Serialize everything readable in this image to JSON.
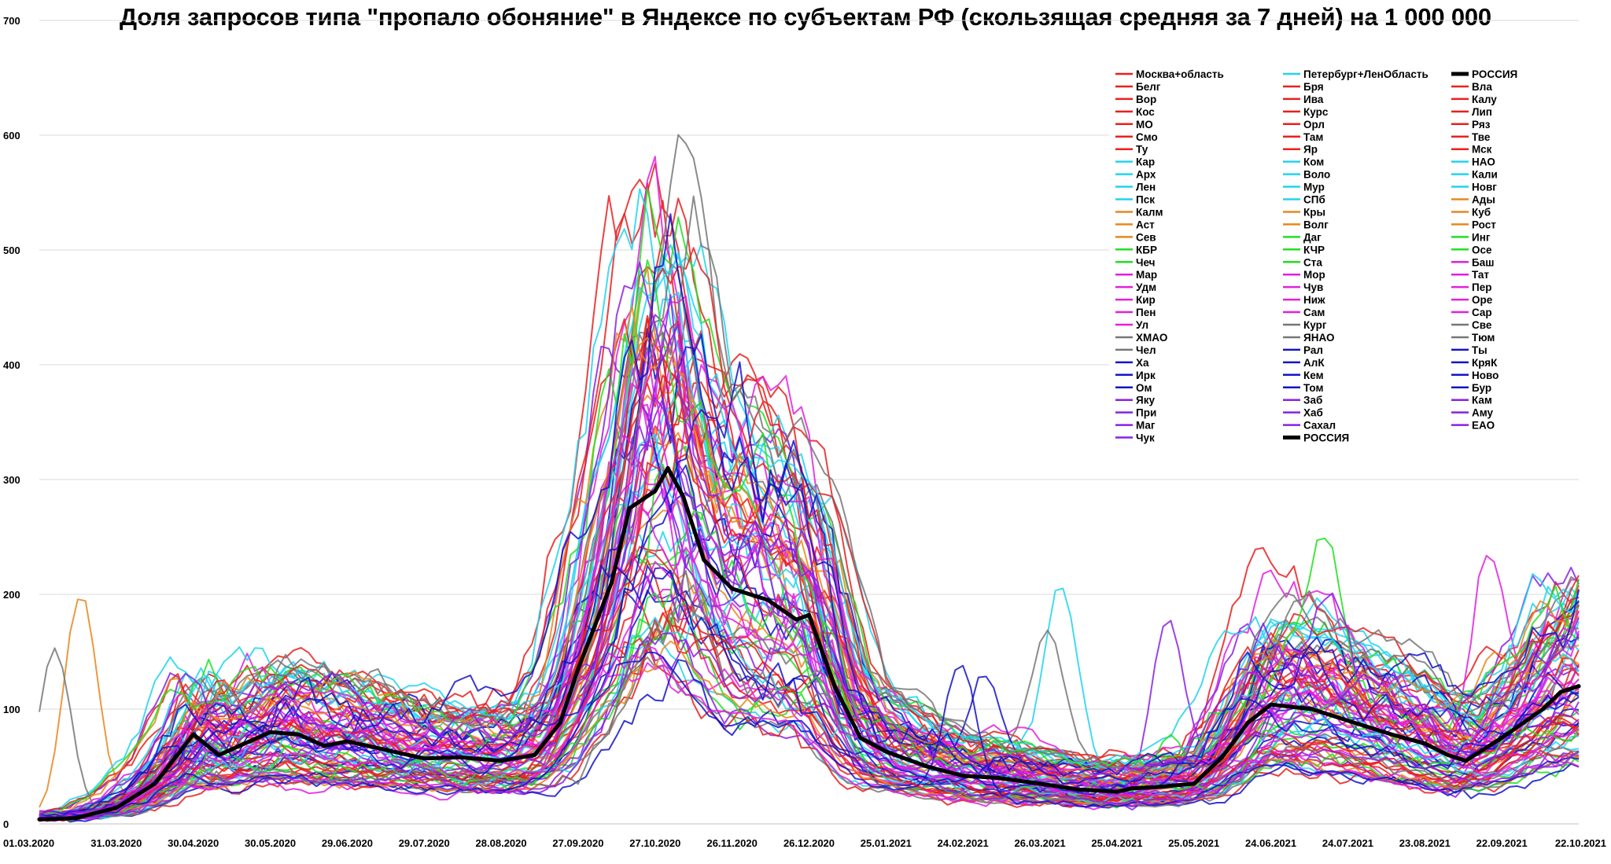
{
  "chart_data": {
    "type": "line",
    "title": "Доля запросов типа \"пропало обоняние\" в Яндексе по субъектам РФ (скользящая средняя за 7 дней) на 1 000 000",
    "xlabel": "",
    "ylabel": "",
    "x_range": [
      "01.03.2020",
      "22.10.2021"
    ],
    "ylim": [
      0,
      700
    ],
    "yticks": [
      0,
      100,
      200,
      300,
      400,
      500,
      600,
      700
    ],
    "xticks": [
      "01.03.2020",
      "31.03.2020",
      "30.04.2020",
      "30.05.2020",
      "29.06.2020",
      "29.07.2020",
      "28.08.2020",
      "27.09.2020",
      "27.10.2020",
      "26.11.2020",
      "26.12.2020",
      "25.01.2021",
      "24.02.2021",
      "26.03.2021",
      "25.04.2021",
      "25.05.2021",
      "24.06.2021",
      "24.07.2021",
      "23.08.2021",
      "22.09.2021",
      "22.10.2021"
    ],
    "grid": "horizontal",
    "legend_position": "top-right",
    "legend": [
      [
        {
          "name": "Москва+область",
          "color": "#e8201e"
        },
        {
          "name": "Белг",
          "color": "#e8201e"
        },
        {
          "name": "Вор",
          "color": "#e8201e"
        },
        {
          "name": "Кос",
          "color": "#e8201e"
        },
        {
          "name": "МО",
          "color": "#e8201e"
        },
        {
          "name": "Смо",
          "color": "#e8201e"
        },
        {
          "name": "Ту",
          "color": "#e8201e"
        },
        {
          "name": "Кар",
          "color": "#22d3f0"
        },
        {
          "name": "Арх",
          "color": "#22d3f0"
        },
        {
          "name": "Лен",
          "color": "#22d3f0"
        },
        {
          "name": "Пск",
          "color": "#22d3f0"
        },
        {
          "name": "Калм",
          "color": "#e8871e"
        },
        {
          "name": "Аст",
          "color": "#e8871e"
        },
        {
          "name": "Сев",
          "color": "#e8871e"
        },
        {
          "name": "КБР",
          "color": "#22e022"
        },
        {
          "name": "Чеч",
          "color": "#22e022"
        },
        {
          "name": "Мар",
          "color": "#e020e0"
        },
        {
          "name": "Удм",
          "color": "#e020e0"
        },
        {
          "name": "Кир",
          "color": "#e020e0"
        },
        {
          "name": "Пен",
          "color": "#e020e0"
        },
        {
          "name": "Ул",
          "color": "#e020e0"
        },
        {
          "name": "ХМАО",
          "color": "#777777"
        },
        {
          "name": "Чел",
          "color": "#777777"
        },
        {
          "name": "Ха",
          "color": "#1414c8"
        },
        {
          "name": "Ирк",
          "color": "#1414c8"
        },
        {
          "name": "Ом",
          "color": "#1414c8"
        },
        {
          "name": "Яку",
          "color": "#8a22e0"
        },
        {
          "name": "При",
          "color": "#8a22e0"
        },
        {
          "name": "Маг",
          "color": "#8a22e0"
        },
        {
          "name": "Чук",
          "color": "#8a22e0"
        }
      ],
      [
        {
          "name": "Петербург+ЛенОбласть",
          "color": "#22d3f0"
        },
        {
          "name": "Бря",
          "color": "#e8201e"
        },
        {
          "name": "Ива",
          "color": "#e8201e"
        },
        {
          "name": "Курс",
          "color": "#e8201e"
        },
        {
          "name": "Орл",
          "color": "#e8201e"
        },
        {
          "name": "Там",
          "color": "#e8201e"
        },
        {
          "name": "Яр",
          "color": "#e8201e"
        },
        {
          "name": "Ком",
          "color": "#22d3f0"
        },
        {
          "name": "Воло",
          "color": "#22d3f0"
        },
        {
          "name": "Мур",
          "color": "#22d3f0"
        },
        {
          "name": "СПб",
          "color": "#22d3f0"
        },
        {
          "name": "Кры",
          "color": "#e8871e"
        },
        {
          "name": "Волг",
          "color": "#e8871e"
        },
        {
          "name": "Даг",
          "color": "#22e022"
        },
        {
          "name": "КЧР",
          "color": "#22e022"
        },
        {
          "name": "Ста",
          "color": "#22e022"
        },
        {
          "name": "Мор",
          "color": "#e020e0"
        },
        {
          "name": "Чув",
          "color": "#e020e0"
        },
        {
          "name": "Ниж",
          "color": "#e020e0"
        },
        {
          "name": "Сам",
          "color": "#e020e0"
        },
        {
          "name": "Кург",
          "color": "#777777"
        },
        {
          "name": "ЯНАО",
          "color": "#777777"
        },
        {
          "name": "Рал",
          "color": "#1414c8"
        },
        {
          "name": "АлК",
          "color": "#1414c8"
        },
        {
          "name": "Кем",
          "color": "#1414c8"
        },
        {
          "name": "Том",
          "color": "#1414c8"
        },
        {
          "name": "Заб",
          "color": "#8a22e0"
        },
        {
          "name": "Хаб",
          "color": "#8a22e0"
        },
        {
          "name": "Сахал",
          "color": "#8a22e0"
        },
        {
          "name": "РОССИЯ",
          "color": "#000000",
          "bold": true
        }
      ],
      [
        {
          "name": "РОССИЯ",
          "color": "#000000",
          "bold": true
        },
        {
          "name": "Вла",
          "color": "#e8201e"
        },
        {
          "name": "Калу",
          "color": "#e8201e"
        },
        {
          "name": "Лип",
          "color": "#e8201e"
        },
        {
          "name": "Ряз",
          "color": "#e8201e"
        },
        {
          "name": "Тве",
          "color": "#e8201e"
        },
        {
          "name": "Мск",
          "color": "#e8201e"
        },
        {
          "name": "НАО",
          "color": "#22d3f0"
        },
        {
          "name": "Кали",
          "color": "#22d3f0"
        },
        {
          "name": "Новг",
          "color": "#22d3f0"
        },
        {
          "name": "Ады",
          "color": "#e8871e"
        },
        {
          "name": "Куб",
          "color": "#e8871e"
        },
        {
          "name": "Рост",
          "color": "#e8871e"
        },
        {
          "name": "Инг",
          "color": "#22e022"
        },
        {
          "name": "Осе",
          "color": "#22e022"
        },
        {
          "name": "Баш",
          "color": "#e020e0"
        },
        {
          "name": "Тат",
          "color": "#e020e0"
        },
        {
          "name": "Пер",
          "color": "#e020e0"
        },
        {
          "name": "Оре",
          "color": "#e020e0"
        },
        {
          "name": "Сар",
          "color": "#e020e0"
        },
        {
          "name": "Све",
          "color": "#777777"
        },
        {
          "name": "Тюм",
          "color": "#777777"
        },
        {
          "name": "Ты",
          "color": "#1414c8"
        },
        {
          "name": "КряК",
          "color": "#1414c8"
        },
        {
          "name": "Ново",
          "color": "#1414c8"
        },
        {
          "name": "Бур",
          "color": "#1414c8"
        },
        {
          "name": "Кам",
          "color": "#8a22e0"
        },
        {
          "name": "Аму",
          "color": "#8a22e0"
        },
        {
          "name": "ЕАО",
          "color": "#8a22e0"
        }
      ]
    ],
    "series": [
      {
        "name": "РОССИЯ",
        "color": "#000000",
        "x": [
          "01.03.2020",
          "15.03.2020",
          "31.03.2020",
          "15.04.2020",
          "22.04.2020",
          "30.04.2020",
          "10.05.2020",
          "20.05.2020",
          "30.05.2020",
          "10.06.2020",
          "20.06.2020",
          "29.06.2020",
          "15.07.2020",
          "29.07.2020",
          "12.08.2020",
          "28.08.2020",
          "10.09.2020",
          "20.09.2020",
          "27.09.2020",
          "10.10.2020",
          "17.10.2020",
          "27.10.2020",
          "01.11.2020",
          "07.11.2020",
          "15.11.2020",
          "26.11.2020",
          "10.12.2020",
          "21.12.2020",
          "26.12.2020",
          "05.01.2021",
          "15.01.2021",
          "25.01.2021",
          "10.02.2021",
          "24.02.2021",
          "10.03.2021",
          "26.03.2021",
          "10.04.2021",
          "25.04.2021",
          "01.05.2021",
          "10.05.2021",
          "25.05.2021",
          "05.06.2021",
          "15.06.2021",
          "24.06.2021",
          "10.07.2021",
          "24.07.2021",
          "10.08.2021",
          "23.08.2021",
          "01.09.2021",
          "08.09.2021",
          "22.09.2021",
          "08.10.2021",
          "15.10.2021",
          "22.10.2021"
        ],
        "y": [
          4,
          5,
          14,
          35,
          55,
          78,
          60,
          70,
          80,
          78,
          68,
          72,
          64,
          57,
          58,
          55,
          60,
          88,
          135,
          210,
          275,
          290,
          310,
          285,
          230,
          205,
          195,
          178,
          182,
          120,
          75,
          63,
          50,
          42,
          40,
          35,
          30,
          28,
          31,
          32,
          35,
          58,
          88,
          104,
          100,
          90,
          78,
          70,
          60,
          55,
          75,
          100,
          115,
          120
        ]
      }
    ]
  }
}
